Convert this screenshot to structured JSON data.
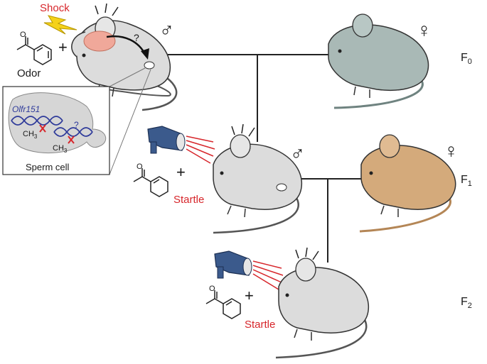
{
  "labels": {
    "shock": "Shock",
    "odor": "Odor",
    "question_brain": "?",
    "question_dna": "?",
    "gene": "Olfr151",
    "methyl_1": "CH3",
    "methyl_2": "CH3",
    "sperm_cell": "Sperm cell",
    "startle_f1": "Startle",
    "startle_f2": "Startle",
    "plus_f0": "+",
    "plus_f1": "+",
    "plus_f2": "+",
    "male_f0": "♂",
    "female_f0": "♀",
    "male_f1": "♂",
    "female_f1": "♀",
    "gen_f0": "F0",
    "gen_f1": "F1",
    "gen_f2": "F2"
  },
  "colors": {
    "mouse_grey": "#dcdcdc",
    "mouse_female_f0": "#a9b9b6",
    "mouse_female_f1": "#d4aa7b",
    "brain_highlight": "#f0a89a",
    "shock_bolt": "#f5d21a",
    "startle_red": "#d7262b",
    "dna_blue": "#2e3a9a",
    "megaphone_blue": "#3b5a8c"
  },
  "icons": [
    "lightning-icon",
    "acetophenone-molecule-icon",
    "megaphone-icon",
    "dna-helix-icon"
  ]
}
